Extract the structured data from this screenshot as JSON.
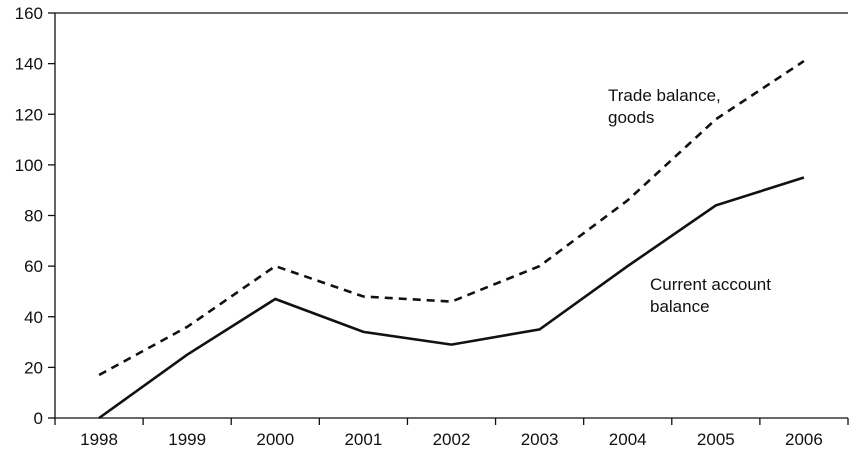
{
  "chart_data": {
    "type": "line",
    "title": "",
    "xlabel": "",
    "ylabel": "",
    "categories": [
      "1998",
      "1999",
      "2000",
      "2001",
      "2002",
      "2003",
      "2004",
      "2005",
      "2006"
    ],
    "ylim": [
      0,
      160
    ],
    "yticks": [
      0,
      20,
      40,
      60,
      80,
      100,
      120,
      140,
      160
    ],
    "grid": false,
    "legend": "none",
    "series": [
      {
        "name": "Trade balance, goods",
        "label_lines": [
          "Trade balance,",
          "goods"
        ],
        "style": "dashed",
        "color": "#111111",
        "values": [
          17,
          36,
          60,
          48,
          46,
          60,
          86,
          118,
          141
        ]
      },
      {
        "name": "Current account balance",
        "label_lines": [
          "Current account",
          "balance"
        ],
        "style": "solid",
        "color": "#111111",
        "values": [
          0,
          25,
          47,
          34,
          29,
          35,
          60,
          84,
          95
        ]
      }
    ]
  }
}
